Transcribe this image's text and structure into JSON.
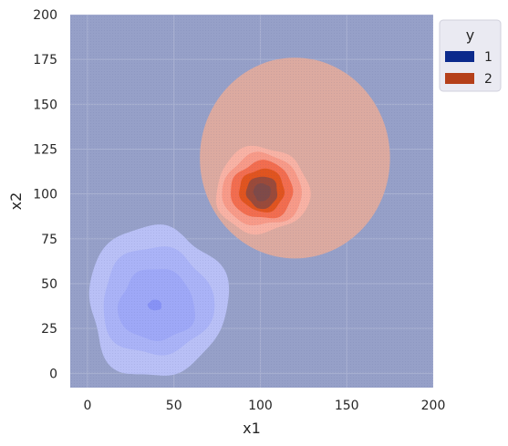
{
  "chart_data": {
    "type": "contour",
    "xlabel": "x1",
    "ylabel": "x2",
    "xlim": [
      -10,
      200
    ],
    "ylim": [
      -8,
      200
    ],
    "xticks": [
      0,
      50,
      100,
      150,
      200
    ],
    "yticks": [
      0,
      25,
      50,
      75,
      100,
      125,
      150,
      175,
      200
    ],
    "grid": true,
    "background_color": "#96a0c8",
    "legend": {
      "title": "y",
      "placement": "upper-right-outside",
      "entries": [
        {
          "label": "1",
          "color": "#0b2a8c"
        },
        {
          "label": "2",
          "color": "#b5401a"
        }
      ]
    },
    "regions": [
      {
        "series": "2",
        "kind": "circle",
        "center": [
          120,
          120
        ],
        "radius_x": 55,
        "radius_y": 56,
        "color": "#dcaaa0"
      },
      {
        "series": "2",
        "kind": "blob",
        "center": [
          101,
          102
        ],
        "radius_x": 27,
        "radius_y": 24,
        "color": "#f8b2a4"
      },
      {
        "series": "2",
        "kind": "blob",
        "center": [
          101,
          102
        ],
        "radius_x": 23,
        "radius_y": 20,
        "color": "#f79a88"
      },
      {
        "series": "2",
        "kind": "blob",
        "center": [
          101,
          102
        ],
        "radius_x": 18,
        "radius_y": 16,
        "color": "#f26d4f"
      },
      {
        "series": "2",
        "kind": "blob",
        "center": [
          101,
          102
        ],
        "radius_x": 13,
        "radius_y": 12,
        "color": "#e0541f"
      },
      {
        "series": "2",
        "kind": "blob",
        "center": [
          101,
          101
        ],
        "radius_x": 9,
        "radius_y": 9,
        "color": "#9a4a3a"
      },
      {
        "series": "2",
        "kind": "blob",
        "center": [
          101,
          101
        ],
        "radius_x": 5,
        "radius_y": 5,
        "color": "#7f4a48"
      },
      {
        "series": "1",
        "kind": "blob",
        "center": [
          40,
          40
        ],
        "radius_x": 40,
        "radius_y": 42,
        "color": "#b9c0f6"
      },
      {
        "series": "1",
        "kind": "blob",
        "center": [
          40,
          40
        ],
        "radius_x": 32,
        "radius_y": 30,
        "color": "#aab3f7"
      },
      {
        "series": "1",
        "kind": "blob",
        "center": [
          40,
          38
        ],
        "radius_x": 22,
        "radius_y": 20,
        "color": "#9ea8f7"
      },
      {
        "series": "1",
        "kind": "blob",
        "center": [
          39,
          38
        ],
        "radius_x": 4,
        "radius_y": 3,
        "color": "#8792f5"
      }
    ]
  }
}
